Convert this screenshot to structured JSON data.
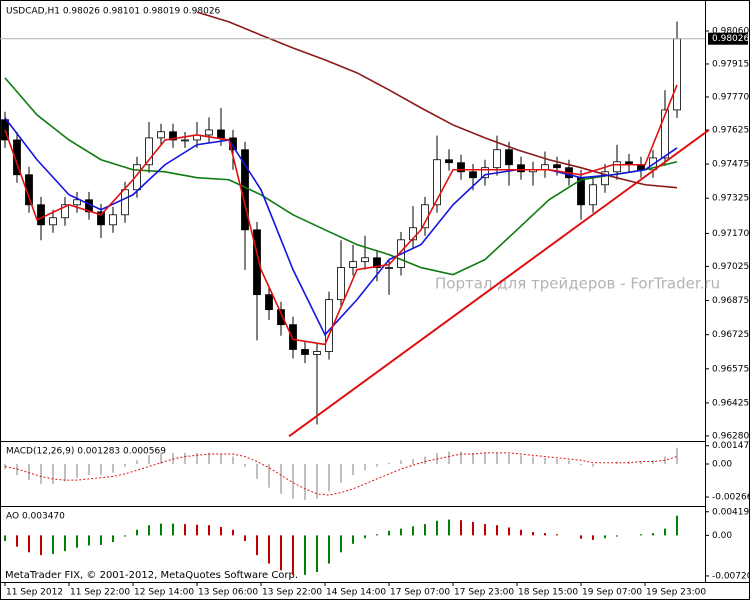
{
  "watermark": "Портал для трейдеров - ForTrader.ru",
  "footer": "MetaTrader FIX, © 2001-2012, MetaQuotes Software Corp.",
  "chart_data": [
    {
      "type": "candlestick",
      "title": "USDCAD,H1  0.98026 0.98101 0.98019 0.98026",
      "xlim": [
        0,
        171
      ],
      "ylim": [
        0.96262,
        0.98183
      ],
      "yticks": [
        {
          "value": 0.9806,
          "label": "0.98060"
        },
        0.97915,
        {
          "value": 0.9777,
          "label": "0.97770"
        },
        0.97625,
        0.97475,
        0.97325,
        {
          "value": 0.9717,
          "label": "0.97170"
        },
        0.97025,
        0.96875,
        0.96725,
        0.96575,
        0.96425,
        {
          "value": 0.9628,
          "label": "0.96280"
        }
      ],
      "current_price": {
        "value": 0.98026,
        "label": "0.98026"
      },
      "x": [
        0,
        3,
        6,
        9,
        12,
        15,
        18,
        21,
        24,
        27,
        30,
        33,
        36,
        39,
        42,
        45,
        48,
        51,
        54,
        57,
        60,
        63,
        66,
        69,
        72,
        75,
        78,
        81,
        84,
        87,
        90,
        93,
        96,
        99,
        102,
        105,
        108,
        111,
        114,
        117,
        120,
        123,
        126,
        129,
        132,
        135,
        138,
        141,
        144,
        147,
        150,
        153,
        156,
        159,
        162,
        165,
        168
      ],
      "open": [
        0.9767,
        0.97581,
        0.97428,
        0.97296,
        0.97208,
        0.97239,
        0.97296,
        0.97318,
        0.97265,
        0.97208,
        0.97252,
        0.97362,
        0.97472,
        0.9759,
        0.97617,
        0.97581,
        0.97581,
        0.97603,
        0.97625,
        0.9759,
        0.97538,
        0.97186,
        0.96901,
        0.96835,
        0.96769,
        0.9666,
        0.96638,
        0.96651,
        0.96879,
        0.9702,
        0.97046,
        0.97063,
        0.9702,
        0.9702,
        0.97142,
        0.97195,
        0.97296,
        0.97494,
        0.97481,
        0.97441,
        0.97415,
        0.97459,
        0.97538,
        0.97472,
        0.97441,
        0.9745,
        0.97472,
        0.97459,
        0.97415,
        0.97296,
        0.97384,
        0.97441,
        0.97485,
        0.97472,
        0.9745,
        0.97502,
        0.97713
      ],
      "high": [
        0.97705,
        0.97616,
        0.97463,
        0.97331,
        0.97274,
        0.97331,
        0.97353,
        0.97353,
        0.973,
        0.97287,
        0.97397,
        0.97507,
        0.9766,
        0.97652,
        0.97652,
        0.97616,
        0.9766,
        0.9768,
        0.97722,
        0.97625,
        0.97573,
        0.97221,
        0.96936,
        0.9687,
        0.96804,
        0.96695,
        0.96686,
        0.96914,
        0.9714,
        0.9712,
        0.9716,
        0.97098,
        0.97055,
        0.97177,
        0.9729,
        0.97331,
        0.976,
        0.9754,
        0.97516,
        0.97476,
        0.97494,
        0.976,
        0.97573,
        0.97507,
        0.97485,
        0.9753,
        0.97507,
        0.97494,
        0.9745,
        0.97419,
        0.97476,
        0.9756,
        0.9752,
        0.97507,
        0.97537,
        0.978,
        0.98101
      ],
      "low": [
        0.97546,
        0.97393,
        0.97261,
        0.9714,
        0.97173,
        0.97204,
        0.97261,
        0.9723,
        0.9715,
        0.97173,
        0.97217,
        0.97327,
        0.97437,
        0.97555,
        0.97546,
        0.97546,
        0.97546,
        0.97568,
        0.97555,
        0.9745,
        0.9701,
        0.967,
        0.9679,
        0.9672,
        0.9662,
        0.966,
        0.9633,
        0.96616,
        0.96844,
        0.96985,
        0.97011,
        0.9696,
        0.969,
        0.96985,
        0.97107,
        0.9716,
        0.97261,
        0.97446,
        0.97406,
        0.9736,
        0.9738,
        0.97424,
        0.9738,
        0.97406,
        0.9738,
        0.97415,
        0.97424,
        0.9738,
        0.9723,
        0.97261,
        0.97349,
        0.97406,
        0.97437,
        0.97415,
        0.97415,
        0.97467,
        0.97678
      ],
      "close": [
        0.97581,
        0.97428,
        0.97296,
        0.97208,
        0.97239,
        0.97296,
        0.97318,
        0.97265,
        0.97208,
        0.97252,
        0.97362,
        0.97472,
        0.9759,
        0.97617,
        0.97581,
        0.97581,
        0.97603,
        0.97625,
        0.9759,
        0.97538,
        0.97186,
        0.96901,
        0.96835,
        0.96769,
        0.9666,
        0.96638,
        0.96651,
        0.96879,
        0.9702,
        0.97046,
        0.97063,
        0.9702,
        0.9702,
        0.97142,
        0.97195,
        0.97296,
        0.97494,
        0.97481,
        0.97441,
        0.97415,
        0.97459,
        0.97538,
        0.97472,
        0.97441,
        0.9745,
        0.97472,
        0.97459,
        0.97415,
        0.97296,
        0.97384,
        0.97441,
        0.97485,
        0.97472,
        0.9745,
        0.97502,
        0.97713,
        0.98026
      ],
      "series": [
        {
          "color": "#8b1a1a",
          "x": [
            0,
            8,
            16,
            24,
            32,
            40,
            48,
            56,
            64,
            72,
            80,
            88,
            96,
            104,
            112,
            120,
            128,
            136,
            144,
            152,
            160,
            168
          ],
          "values": [
            null,
            null,
            null,
            null,
            null,
            null,
            0.98143,
            0.981,
            0.98042,
            0.97985,
            0.97933,
            0.97876,
            0.97801,
            0.97722,
            0.97647,
            0.9759,
            0.97538,
            0.97494,
            0.97459,
            0.97419,
            0.97384,
            0.97371
          ]
        },
        {
          "color": "#0f7a0f",
          "x": [
            0,
            8,
            16,
            24,
            32,
            40,
            48,
            56,
            64,
            72,
            80,
            88,
            96,
            104,
            112,
            120,
            128,
            136,
            144,
            152,
            160,
            168
          ],
          "values": [
            0.97854,
            0.97691,
            0.97581,
            0.97494,
            0.9745,
            0.97441,
            0.97415,
            0.97406,
            0.9734,
            0.97252,
            0.97186,
            0.97121,
            0.97077,
            0.9702,
            0.96989,
            0.97055,
            0.97186,
            0.97318,
            0.97406,
            0.97428,
            0.9745,
            0.97485
          ]
        },
        {
          "color": "#1414e0",
          "x": [
            0,
            8,
            16,
            24,
            32,
            40,
            48,
            56,
            64,
            72,
            80,
            88,
            96,
            104,
            112,
            120,
            128,
            136,
            144,
            152,
            160,
            168
          ],
          "values": [
            0.97678,
            0.97494,
            0.9734,
            0.97274,
            0.9734,
            0.97472,
            0.9756,
            0.97581,
            0.97362,
            0.97011,
            0.96725,
            0.96879,
            0.97055,
            0.97121,
            0.97296,
            0.97428,
            0.9745,
            0.9745,
            0.97415,
            0.97428,
            0.9745,
            0.97546
          ]
        },
        {
          "color": "#e01010",
          "x": [
            0,
            8,
            16,
            24,
            32,
            40,
            48,
            56,
            64,
            72,
            80,
            88,
            96,
            104,
            112,
            120,
            128,
            136,
            144,
            152,
            160,
            168
          ],
          "values": [
            0.97625,
            0.9723,
            0.97296,
            0.97252,
            0.97406,
            0.97581,
            0.97603,
            0.97581,
            0.97011,
            0.96704,
            0.96682,
            0.97011,
            0.97033,
            0.97186,
            0.9745,
            0.9745,
            0.9745,
            0.9745,
            0.97428,
            0.97472,
            0.97472,
            0.97823
          ]
        }
      ],
      "trendline": {
        "color": "#e01010",
        "x": [
          71,
          176
        ],
        "values": [
          0.96278,
          0.97625
        ]
      }
    },
    {
      "type": "macd",
      "title": "MACD(12,26,9) 0.001283 0.000569",
      "xlim": [
        0,
        171
      ],
      "ylim": [
        -0.0033,
        0.00169
      ],
      "yticks": [
        0.001471,
        {
          "value": 0,
          "label": "0.00"
        },
        -0.00266
      ],
      "color": "#c0c0c0",
      "x": [
        0,
        3,
        6,
        9,
        12,
        15,
        18,
        21,
        24,
        27,
        30,
        33,
        36,
        39,
        42,
        45,
        48,
        51,
        54,
        57,
        60,
        63,
        66,
        69,
        72,
        75,
        78,
        81,
        84,
        87,
        90,
        93,
        96,
        99,
        102,
        105,
        108,
        111,
        114,
        117,
        120,
        123,
        126,
        129,
        132,
        135,
        138,
        141,
        144,
        147,
        150,
        153,
        156,
        159,
        162,
        165,
        168
      ],
      "values": [
        -0.0004,
        -0.0009,
        -0.0013,
        -0.0016,
        -0.0016,
        -0.0014,
        -0.0011,
        -0.0009,
        -0.0009,
        -0.0007,
        -0.0002,
        0.0003,
        0.0007,
        0.0009,
        0.0009,
        0.0009,
        0.0009,
        0.0009,
        0.0008,
        0.0006,
        -0.0002,
        -0.0012,
        -0.0019,
        -0.0024,
        -0.0028,
        -0.0029,
        -0.0028,
        -0.0022,
        -0.0015,
        -0.0009,
        -0.0005,
        -0.0002,
        0.0001,
        0.0003,
        0.0004,
        0.0006,
        0.0009,
        0.001,
        0.001,
        0.0009,
        0.0009,
        0.0009,
        0.0008,
        0.0007,
        0.0006,
        0.0005,
        0.0004,
        0.0003,
        -0.0001,
        -0.0002,
        0.0,
        0.0002,
        0.0002,
        0.0002,
        0.0003,
        0.0006,
        0.0013
      ],
      "signal": {
        "color": "#e01010",
        "values": [
          -0.0002,
          -0.0004,
          -0.0007,
          -0.001,
          -0.0012,
          -0.0013,
          -0.0013,
          -0.0012,
          -0.0011,
          -0.001,
          -0.0008,
          -0.0005,
          -0.0002,
          0.0001,
          0.0004,
          0.0006,
          0.0007,
          0.0008,
          0.0008,
          0.0008,
          0.0006,
          0.0002,
          -0.0003,
          -0.0009,
          -0.0015,
          -0.002,
          -0.0024,
          -0.0025,
          -0.0023,
          -0.002,
          -0.0016,
          -0.0012,
          -0.0008,
          -0.0004,
          -0.0001,
          0.0002,
          0.0004,
          0.0006,
          0.0008,
          0.0008,
          0.0009,
          0.0009,
          0.0009,
          0.0008,
          0.0007,
          0.0006,
          0.0005,
          0.0004,
          0.0003,
          0.0001,
          0.0001,
          0.0001,
          0.0001,
          0.0002,
          0.0002,
          0.0003,
          0.0006
        ]
      }
    },
    {
      "type": "ao",
      "title": "AO 0.003470",
      "xlim": [
        0,
        171
      ],
      "ylim": [
        -0.0081,
        0.00486
      ],
      "yticks": [
        0.004194,
        {
          "value": 0,
          "label": "0.00"
        },
        {
          "value": -0.0072,
          "label": "-0.00720"
        }
      ],
      "colors": [
        "#008000",
        "#c00000"
      ],
      "xticks": [
        {
          "value": 0,
          "label": "11 Sep 2012"
        },
        {
          "value": 16,
          "label": "11 Sep 22:00"
        },
        {
          "value": 32,
          "label": "12 Sep 14:00"
        },
        {
          "value": 48,
          "label": "13 Sep 06:00"
        },
        {
          "value": 64,
          "label": "13 Sep 22:00"
        },
        {
          "value": 80,
          "label": "14 Sep 14:00"
        },
        {
          "value": 96,
          "label": "17 Sep 07:00"
        },
        {
          "value": 112,
          "label": "17 Sep 23:00"
        },
        {
          "value": 128,
          "label": "18 Sep 15:00"
        },
        {
          "value": 144,
          "label": "19 Sep 07:00"
        },
        {
          "value": 160,
          "label": "19 Sep 23:00"
        }
      ],
      "x": [
        0,
        3,
        6,
        9,
        12,
        15,
        18,
        21,
        24,
        27,
        30,
        33,
        36,
        39,
        42,
        45,
        48,
        51,
        54,
        57,
        60,
        63,
        66,
        69,
        72,
        75,
        78,
        81,
        84,
        87,
        90,
        93,
        96,
        99,
        102,
        105,
        108,
        111,
        114,
        117,
        120,
        123,
        126,
        129,
        132,
        135,
        138,
        141,
        144,
        147,
        150,
        153,
        156,
        159,
        162,
        165,
        168
      ],
      "values": [
        -0.001,
        -0.002,
        -0.003,
        -0.0035,
        -0.0033,
        -0.0028,
        -0.0022,
        -0.0018,
        -0.0017,
        -0.0012,
        -0.0002,
        0.001,
        0.0018,
        0.0021,
        0.0021,
        0.002,
        0.0019,
        0.0018,
        0.0015,
        0.001,
        -0.001,
        -0.0035,
        -0.005,
        -0.0062,
        -0.007,
        -0.007,
        -0.0065,
        -0.005,
        -0.003,
        -0.0015,
        -0.0005,
        0.0002,
        0.0008,
        0.0012,
        0.0016,
        0.002,
        0.0026,
        0.0028,
        0.0027,
        0.0024,
        0.002,
        0.0018,
        0.0014,
        0.001,
        0.0006,
        0.0004,
        0.0002,
        0.0,
        -0.0006,
        -0.0008,
        -0.0005,
        -0.0002,
        0.0,
        0.0002,
        0.0004,
        0.0012,
        0.0035
      ]
    }
  ]
}
